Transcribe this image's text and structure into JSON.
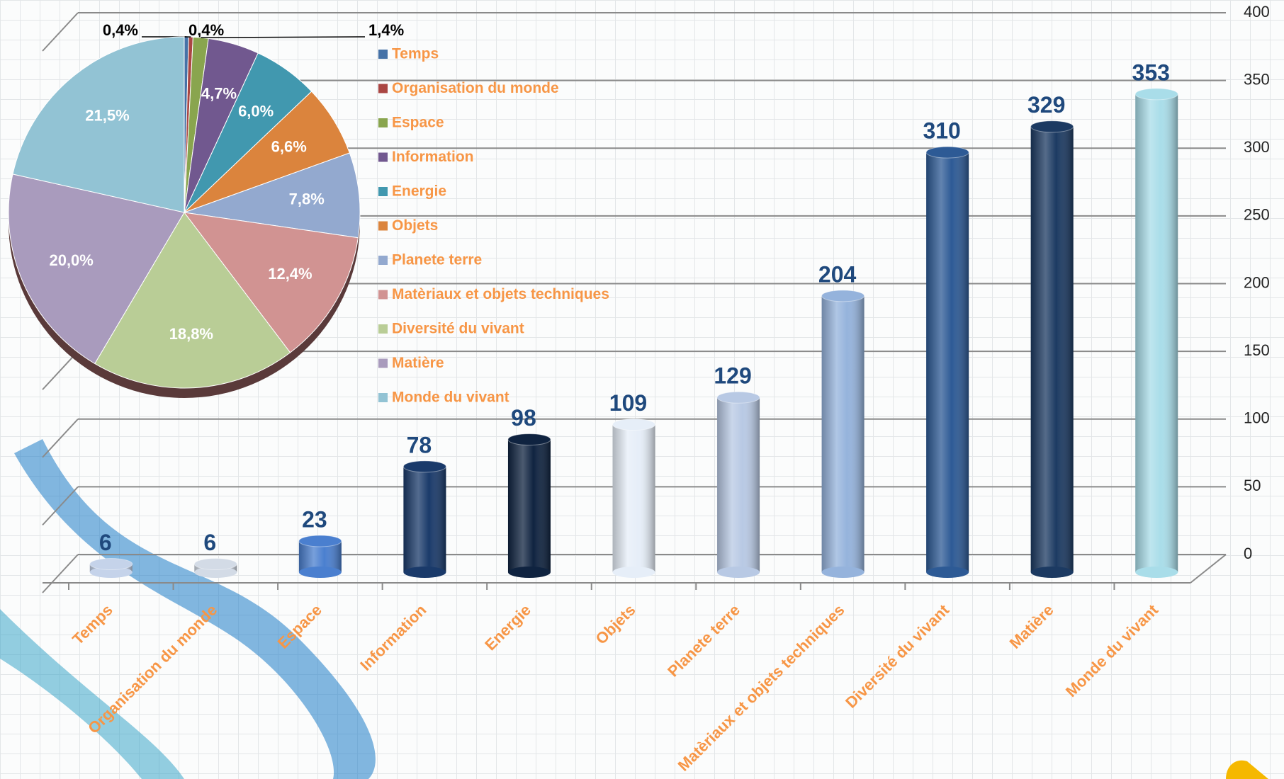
{
  "chart_data": [
    {
      "type": "bar",
      "categories": [
        "Temps",
        "Organisation du monde",
        "Espace",
        "Information",
        "Energie",
        "Objets",
        "Planete terre",
        "Matèriaux et objets techniques",
        "Diversité du vivant",
        "Matière",
        "Monde du vivant"
      ],
      "values": [
        6,
        6,
        23,
        78,
        98,
        109,
        129,
        204,
        310,
        329,
        353
      ],
      "colors": [
        "#c5d3ea",
        "#d3dbe6",
        "#4a7fcf",
        "#1a3a6a",
        "#0f2340",
        "#e6eef8",
        "#b8c9e4",
        "#95b3dc",
        "#2d5a95",
        "#1c3a62",
        "#a9dde9"
      ],
      "ylim": [
        0,
        400
      ],
      "yticks": [
        0,
        50,
        100,
        150,
        200,
        250,
        300,
        350,
        400
      ],
      "grid": true
    },
    {
      "type": "pie",
      "categories": [
        "Temps",
        "Organisation du monde",
        "Espace",
        "Information",
        "Energie",
        "Objets",
        "Planete terre",
        "Matèriaux et objets techniques",
        "Diversité du vivant",
        "Matière",
        "Monde du vivant"
      ],
      "values": [
        0.4,
        0.4,
        1.4,
        4.7,
        6.0,
        6.6,
        7.8,
        12.4,
        18.8,
        20.0,
        21.5
      ],
      "value_labels": [
        "0,4%",
        "0,4%",
        "1,4%",
        "4,7%",
        "6,0%",
        "6,6%",
        "7,8%",
        "12,4%",
        "18,8%",
        "20,0%",
        "21,5%"
      ],
      "colors": [
        "#4572a7",
        "#aa4643",
        "#89a54e",
        "#71588f",
        "#4198af",
        "#db843d",
        "#93a9cf",
        "#d19392",
        "#b9cd96",
        "#a99bbd",
        "#92c3d4"
      ],
      "legend": "right"
    }
  ]
}
